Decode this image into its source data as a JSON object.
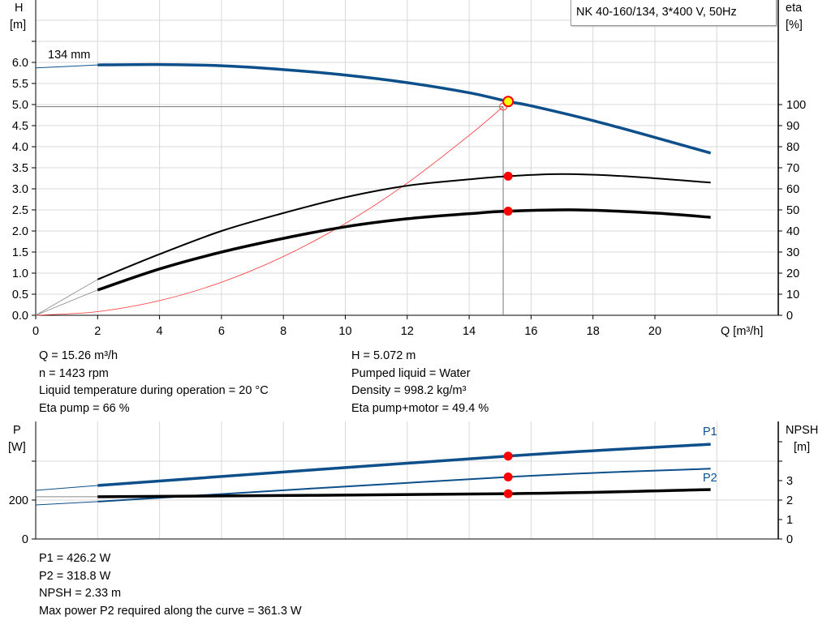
{
  "title": "NK 40-160/134, 3*400 V, 50Hz",
  "colors": {
    "head": "#0c4f8a",
    "power": "#0c4f8a",
    "efficiency": "#000000",
    "system_curve": "#ff3333",
    "op_point": "#ff0000",
    "op_point_fill": "#ffff00",
    "grid": "#d8d8d8"
  },
  "chart_data": [
    {
      "type": "line",
      "x_label": "Q [m³/h]",
      "y_label_left": [
        "H",
        "[m]"
      ],
      "y_label_right": [
        "eta",
        "[%]"
      ],
      "xlim": [
        0,
        24
      ],
      "ylim_left": [
        0,
        7.5
      ],
      "ylim_right": [
        0,
        100
      ],
      "x_ticks": [
        "0",
        "2",
        "4",
        "6",
        "8",
        "10",
        "12",
        "14",
        "16",
        "18",
        "20"
      ],
      "y_ticks_left": [
        "0.0",
        "0.5",
        "1.0",
        "1.5",
        "2.0",
        "2.5",
        "3.0",
        "3.5",
        "4.0",
        "4.5",
        "5.0",
        "5.5",
        "6.0"
      ],
      "y_ticks_right": [
        "0",
        "10",
        "20",
        "30",
        "40",
        "50",
        "60",
        "70",
        "80",
        "90",
        "100"
      ],
      "grid": true,
      "curve_label": "134 mm",
      "series": [
        {
          "id": "head",
          "axis": "left",
          "x": [
            0,
            2,
            4,
            6,
            8,
            10,
            12,
            14,
            15.26,
            16,
            18,
            20,
            21.8
          ],
          "y": [
            5.87,
            5.94,
            5.95,
            5.92,
            5.83,
            5.7,
            5.52,
            5.28,
            5.072,
            4.97,
            4.62,
            4.22,
            3.85
          ]
        },
        {
          "id": "eta_pump",
          "axis": "right",
          "x": [
            0,
            2,
            4,
            6,
            8,
            10,
            12,
            14,
            15.26,
            17,
            19,
            21.8
          ],
          "y": [
            0,
            17,
            29,
            40,
            48.5,
            56,
            61.5,
            64.5,
            66,
            67,
            66,
            63
          ]
        },
        {
          "id": "eta_pump_motor",
          "axis": "right",
          "x": [
            0,
            2,
            4,
            6,
            8,
            10,
            12,
            14,
            15.26,
            17.5,
            20,
            21.8
          ],
          "y": [
            0,
            12,
            22,
            30,
            36.5,
            42,
            45.8,
            48.2,
            49.4,
            50,
            48.5,
            46.5
          ]
        },
        {
          "id": "system_curve",
          "axis": "left",
          "x": [
            0,
            2,
            4,
            6,
            8,
            10,
            12,
            14,
            15.1
          ],
          "y": [
            0,
            0.087,
            0.348,
            0.784,
            1.394,
            2.178,
            3.136,
            4.269,
            4.95
          ]
        }
      ],
      "operating_point": {
        "Q": 15.26,
        "H": 5.072,
        "eta_pump": 66,
        "eta_pump_motor": 49.4
      }
    },
    {
      "type": "line",
      "y_label_left": [
        "P",
        "[W]"
      ],
      "y_label_right": [
        "NPSH",
        "[m]"
      ],
      "xlim": [
        0,
        24
      ],
      "ylim_left": [
        0,
        600
      ],
      "ylim_right": [
        0,
        6
      ],
      "y_ticks_left": [
        "0",
        "200"
      ],
      "y_ticks_right": [
        "0",
        "1",
        "2",
        "3"
      ],
      "grid": true,
      "series": [
        {
          "id": "P1",
          "name": "P1",
          "axis": "left",
          "x": [
            0,
            2,
            15.26,
            21.8
          ],
          "y": [
            250,
            275,
            426.2,
            487
          ]
        },
        {
          "id": "P2",
          "name": "P2",
          "axis": "left",
          "x": [
            0,
            2,
            15.26,
            21.8
          ],
          "y": [
            175,
            192,
            318.8,
            361.3
          ]
        },
        {
          "id": "NPSH",
          "axis": "right",
          "x": [
            0,
            2,
            15.26,
            21.8
          ],
          "y": [
            2.17,
            2.17,
            2.33,
            2.54
          ]
        }
      ]
    }
  ],
  "results_top": {
    "left": [
      "Q = 15.26 m³/h",
      "n = 1423 rpm",
      "Liquid temperature during operation = 20 °C",
      "Eta pump = 66 %"
    ],
    "right": [
      "H = 5.072 m",
      "Pumped liquid = Water",
      "Density = 998.2 kg/m³",
      "Eta pump+motor = 49.4 %"
    ]
  },
  "results_bottom": [
    "P1 = 426.2 W",
    "P2 = 318.8 W",
    "NPSH = 2.33 m",
    "Max power P2 required along the curve = 361.3 W"
  ]
}
